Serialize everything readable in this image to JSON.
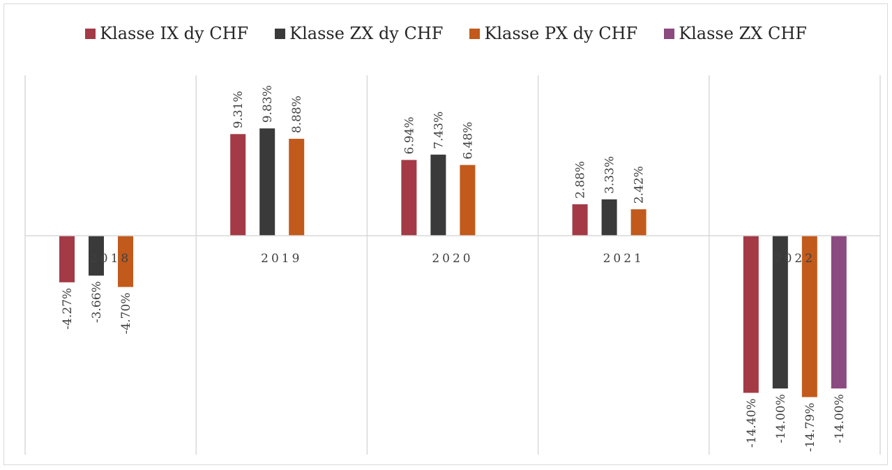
{
  "chart_data": {
    "type": "bar",
    "categories": [
      "2018",
      "2019",
      "2020",
      "2021",
      "2022"
    ],
    "series": [
      {
        "name": "Klasse IX dy CHF",
        "color": "#a33a45",
        "values": [
          -4.27,
          9.31,
          6.94,
          2.88,
          -14.4
        ],
        "labels": [
          "-4.27%",
          "9.31%",
          "6.94%",
          "2.88%",
          "-14.40%"
        ]
      },
      {
        "name": "Klasse ZX dy CHF",
        "color": "#3a3a3a",
        "values": [
          -3.66,
          9.83,
          7.43,
          3.33,
          -14.0
        ],
        "labels": [
          "-3.66%",
          "9.83%",
          "7.43%",
          "3.33%",
          "-14.00%"
        ]
      },
      {
        "name": "Klasse PX dy CHF",
        "color": "#c25a1c",
        "values": [
          -4.7,
          8.88,
          6.48,
          2.42,
          -14.79
        ],
        "labels": [
          "-4.70%",
          "8.88%",
          "6.48%",
          "2.42%",
          "-14.79%"
        ]
      },
      {
        "name": "Klasse ZX CHF",
        "color": "#8b4a80",
        "values": [
          null,
          null,
          null,
          null,
          -14.0
        ],
        "labels": [
          "",
          "",
          "",
          "",
          "-14.00%"
        ]
      }
    ],
    "title": "",
    "xlabel": "",
    "ylabel": "",
    "ylim": [
      -20,
      15
    ],
    "grid": "vertical-separators",
    "legend_position": "top"
  }
}
